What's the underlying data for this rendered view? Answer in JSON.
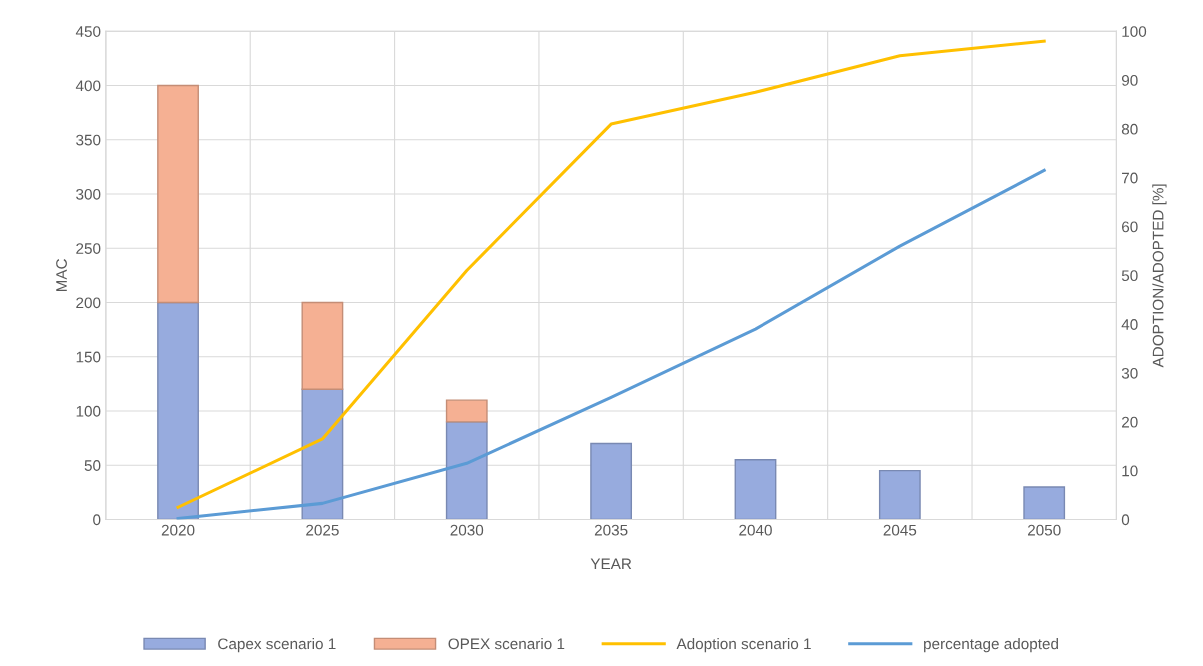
{
  "chart_data": {
    "type": "bar",
    "stacked": true,
    "xlabel": "YEAR",
    "ylabel": "MAC",
    "y2label": "ADOPTION/ADOPTED [%]",
    "categories": [
      "2020",
      "2025",
      "2030",
      "2035",
      "2040",
      "2045",
      "2050"
    ],
    "series": [
      {
        "name": "Capex scenario 1",
        "color": "#97abde",
        "values": [
          200,
          120,
          90,
          70,
          55,
          45,
          30
        ]
      },
      {
        "name": "OPEX scenario 1",
        "color": "#f5b093",
        "values": [
          200,
          80,
          20,
          null,
          null,
          null,
          null
        ]
      },
      {
        "name": "Adoption scenario 1",
        "type": "line",
        "axis": "y2",
        "color": "#ffc000",
        "values": [
          2.5,
          16.5,
          51,
          81,
          87.5,
          95,
          98
        ]
      },
      {
        "name": "percentage adopted",
        "type": "line",
        "axis": "y2",
        "color": "#5b9bd5",
        "values": [
          0.2,
          3.3,
          11.5,
          25,
          39,
          56,
          71.5
        ]
      }
    ],
    "ylim": [
      0,
      450
    ],
    "yticks": [
      0,
      50,
      100,
      150,
      200,
      250,
      300,
      350,
      400,
      450
    ],
    "y2lim": [
      0,
      100
    ],
    "y2ticks": [
      0,
      10,
      20,
      30,
      40,
      50,
      60,
      70,
      80,
      90,
      100
    ],
    "grid": true,
    "legend": "bottom"
  }
}
